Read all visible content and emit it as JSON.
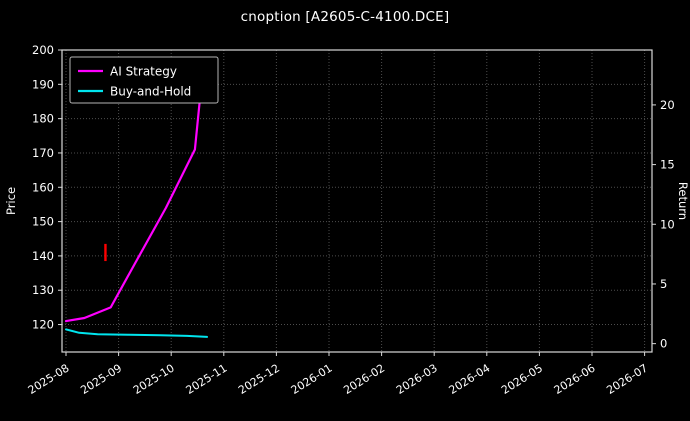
{
  "title": "cnoption [A2605-C-4100.DCE]",
  "chart_data": {
    "type": "line",
    "title": "cnoption [A2605-C-4100.DCE]",
    "xlabel": "",
    "ylabel_left": "Price",
    "ylabel_right": "Return",
    "background_color": "#000000",
    "text_color": "#ffffff",
    "grid": true,
    "grid_style": "dotted",
    "grid_color": "#4d4d4d",
    "spine_color": "#d9d9d9",
    "x_tick_labels": [
      "2025-08",
      "2025-09",
      "2025-10",
      "2025-11",
      "2025-12",
      "2026-01",
      "2026-02",
      "2026-03",
      "2026-04",
      "2026-05",
      "2026-06",
      "2026-07"
    ],
    "y_left_ticks": [
      120,
      130,
      140,
      150,
      160,
      170,
      180,
      190,
      200
    ],
    "y_left_lim": [
      112,
      200
    ],
    "y_right_ticks": [
      0,
      5,
      10,
      15,
      20
    ],
    "y_right_lim": [
      -0.7,
      24.6
    ],
    "legend": {
      "position": "upper-left",
      "entries": [
        {
          "label": "AI Strategy",
          "color": "#ff00ff"
        },
        {
          "label": "Buy-and-Hold",
          "color": "#00e5ee"
        }
      ]
    },
    "series": [
      {
        "name": "AI Strategy",
        "color": "#ff00ff",
        "width": 2.2,
        "points": [
          [
            0,
            121.0
          ],
          [
            0.35,
            121.9
          ],
          [
            0.85,
            125.0
          ],
          [
            1.3,
            137.5
          ],
          [
            1.9,
            154.0
          ],
          [
            2.45,
            171.0
          ],
          [
            2.62,
            197.0
          ]
        ]
      },
      {
        "name": "Buy-and-Hold",
        "color": "#00e5ee",
        "width": 2.0,
        "points": [
          [
            0,
            118.6
          ],
          [
            0.25,
            117.6
          ],
          [
            0.6,
            117.2
          ],
          [
            1.2,
            117.0
          ],
          [
            1.8,
            116.9
          ],
          [
            2.3,
            116.7
          ],
          [
            2.68,
            116.4
          ]
        ]
      }
    ],
    "markers": [
      {
        "type": "vline-segment",
        "x": 0.75,
        "y_from": 138.5,
        "y_to": 143.5,
        "color": "#ff0000",
        "width": 2.4
      }
    ]
  }
}
